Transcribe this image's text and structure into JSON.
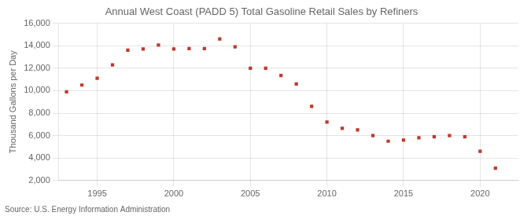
{
  "chart_data": {
    "type": "scatter",
    "title": "Annual West Coast (PADD 5) Total Gasoline Retail Sales by Refiners",
    "ylabel": "Thousand Gallons per Day",
    "annotations": [
      "Source: U.S. Energy Information Administration"
    ],
    "x": [
      1993,
      1994,
      1995,
      1996,
      1997,
      1998,
      1999,
      2000,
      2001,
      2002,
      2003,
      2004,
      2005,
      2006,
      2007,
      2008,
      2009,
      2010,
      2011,
      2012,
      2013,
      2014,
      2015,
      2016,
      2017,
      2018,
      2019,
      2020,
      2021
    ],
    "values": [
      9900,
      10500,
      11100,
      12300,
      13600,
      13700,
      14050,
      13700,
      13750,
      13750,
      14600,
      13900,
      12000,
      12000,
      11350,
      10600,
      8600,
      7200,
      6650,
      6500,
      6000,
      5500,
      5600,
      5800,
      5900,
      6000,
      5900,
      4600,
      3100
    ],
    "color": "#c0392b",
    "marker": "square",
    "xlim": [
      1992.5,
      2022.5
    ],
    "xticks": [
      1995,
      2000,
      2005,
      2010,
      2015,
      2020
    ],
    "ylim": [
      2000,
      16000
    ],
    "yticks": [
      {
        "value": 2000,
        "label": "2,000"
      },
      {
        "value": 4000,
        "label": "4,000"
      },
      {
        "value": 6000,
        "label": "6,000"
      },
      {
        "value": 8000,
        "label": "8,000"
      },
      {
        "value": 10000,
        "label": "10,000"
      },
      {
        "value": 12000,
        "label": "12,000"
      },
      {
        "value": 14000,
        "label": "14,000"
      },
      {
        "value": 16000,
        "label": "16,000"
      }
    ],
    "grid": true
  }
}
